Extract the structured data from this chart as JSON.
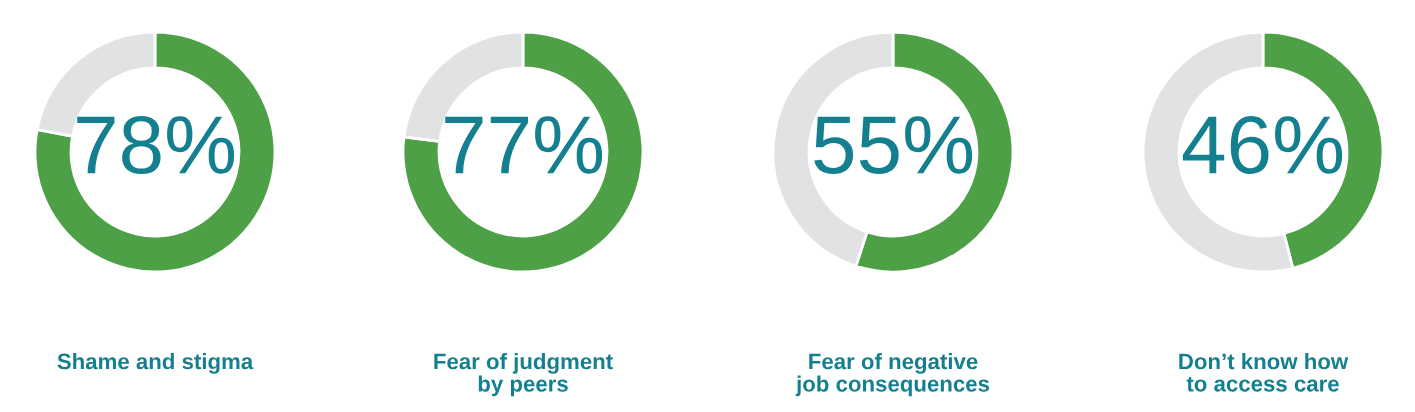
{
  "chart_data": [
    {
      "type": "donut",
      "title": "Shame and stigma",
      "categories": [
        null,
        null
      ],
      "values": [
        78,
        22
      ],
      "colors": [
        "#4ea046",
        "#e1e2e4"
      ],
      "value_labels": [
        "78%",
        null
      ]
    },
    {
      "type": "donut",
      "title": "Fear of judgment\nby peers",
      "categories": [
        null,
        null
      ],
      "values": [
        77,
        23
      ],
      "colors": [
        "#4ea046",
        "#e1e2e4"
      ],
      "value_labels": [
        "77%",
        null
      ]
    },
    {
      "type": "donut",
      "title": "Fear of negative\njob consequences",
      "categories": [
        null,
        null
      ],
      "values": [
        55,
        45
      ],
      "colors": [
        "#4ea046",
        "#e1e2e4"
      ],
      "value_labels": [
        "55%",
        null
      ]
    },
    {
      "type": "donut",
      "title": "Don’t know how\nto access care",
      "categories": [
        null,
        null
      ],
      "values": [
        46,
        54
      ],
      "colors": [
        "#4ea046",
        "#e1e2e4"
      ],
      "value_labels": [
        "46%",
        null
      ]
    }
  ]
}
